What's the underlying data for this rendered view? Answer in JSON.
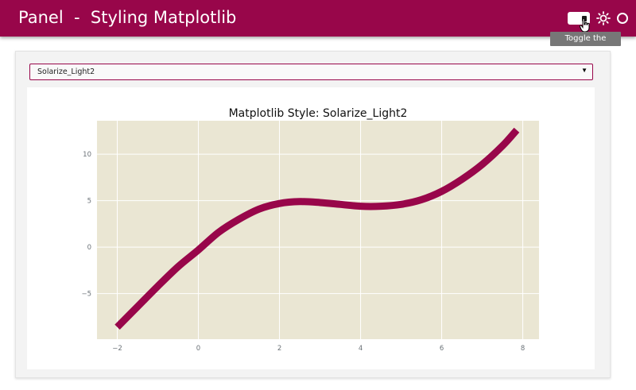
{
  "header": {
    "title": "Panel  -  Styling Matplotlib",
    "tooltip": "Toggle the Theme",
    "icons": [
      "theme-toggle",
      "sun-icon",
      "circle-icon"
    ],
    "brand_color": "#98064a"
  },
  "select": {
    "value": "Solarize_Light2",
    "arrow": "▼"
  },
  "chart_data": {
    "type": "line",
    "title": "Matplotlib Style: Solarize_Light2",
    "xlabel": "",
    "ylabel": "",
    "xlim": [
      -2.5,
      8.4
    ],
    "ylim": [
      -9.9,
      13.6
    ],
    "xticks": [
      -2,
      0,
      2,
      4,
      6,
      8
    ],
    "yticks": [
      -5,
      0,
      5,
      10
    ],
    "xtick_labels": [
      "−2",
      "0",
      "2",
      "4",
      "6",
      "8"
    ],
    "ytick_labels": [
      "−5",
      "0",
      "5",
      "10"
    ],
    "grid": true,
    "background": "#eae6d3",
    "line_color": "#98064a",
    "series": [
      {
        "x": [
          -2.0,
          -1.5,
          -1.0,
          -0.5,
          0.0,
          0.5,
          1.0,
          1.5,
          2.0,
          2.5,
          3.0,
          3.5,
          4.0,
          4.5,
          5.0,
          5.5,
          6.0,
          6.5,
          7.0,
          7.5,
          7.85
        ],
        "y": [
          -8.6,
          -6.4,
          -4.2,
          -2.1,
          -0.3,
          1.6,
          3.0,
          4.1,
          4.7,
          4.9,
          4.8,
          4.6,
          4.4,
          4.4,
          4.6,
          5.1,
          6.0,
          7.3,
          8.9,
          10.9,
          12.6
        ]
      }
    ]
  }
}
